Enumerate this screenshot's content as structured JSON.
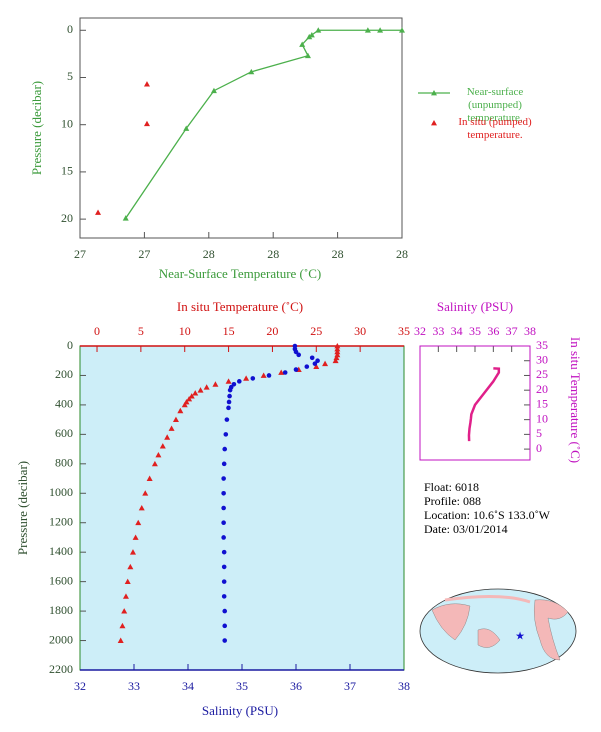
{
  "chart_data": [
    {
      "type": "line",
      "xlabel": "Near-Surface Temperature (˚C)",
      "ylabel": "Pressure (decibar)",
      "xlim": [
        27.3,
        27.8
      ],
      "xticks": [
        {
          "value": 27.3,
          "label": "27"
        },
        {
          "value": 27.4,
          "label": "27"
        },
        {
          "value": 27.5,
          "label": "28"
        },
        {
          "value": 27.6,
          "label": "28"
        },
        {
          "value": 27.7,
          "label": "28"
        },
        {
          "value": 27.8,
          "label": "28"
        }
      ],
      "ylim": [
        -1.3,
        22
      ],
      "yticks": [
        0,
        5,
        10,
        15,
        20
      ],
      "y_inverted": true,
      "xaxis_position": "bottom",
      "yaxis_position": "left",
      "label_color": "#3a9a3a",
      "tick_color": "#2f4f2f",
      "legend": "right",
      "series": [
        {
          "name": "Near-surface (unpumped) temperature.",
          "color": "#4cb04c",
          "marker": "triangle",
          "line": true,
          "x": [
            27.371,
            27.465,
            27.508,
            27.566,
            27.654,
            27.645,
            27.656,
            27.66,
            27.67,
            27.747,
            27.766,
            27.8
          ],
          "y": [
            19.9,
            10.4,
            6.4,
            4.4,
            2.7,
            1.5,
            0.7,
            0.5,
            0,
            0,
            0,
            0
          ]
        },
        {
          "name": "In situ (pumped) temperature.",
          "color": "#e02020",
          "marker": "triangle",
          "line": false,
          "x": [
            27.328,
            27.404,
            27.404
          ],
          "y": [
            19.3,
            9.9,
            5.7
          ]
        }
      ]
    },
    {
      "type": "scatter",
      "xlabel": "Salinity (PSU)",
      "x2label": "In situ Temperature (˚C)",
      "ylabel": "Pressure (decibar)",
      "xlim": [
        32,
        38
      ],
      "xticks": [
        32,
        33,
        34,
        35,
        36,
        37,
        38
      ],
      "x2lim": [
        -1.94,
        35
      ],
      "x2ticks": [
        0,
        5,
        10,
        15,
        20,
        25,
        30,
        35
      ],
      "ylim": [
        0,
        2200
      ],
      "yticks": [
        0,
        200,
        400,
        600,
        800,
        1000,
        1200,
        1400,
        1600,
        1800,
        2000,
        2200
      ],
      "y_inverted": true,
      "xaxis_position": "bottom",
      "x2axis_position": "top",
      "yaxis_position": "left",
      "x_color": "#1a1aa0",
      "x2_color": "#d01010",
      "tick_color": "#2f4f2f",
      "background": "#cdeef8",
      "series": [
        {
          "color": "#e02020",
          "marker": "triangle",
          "line": false,
          "axis": "x2",
          "x": [
            27.4,
            27.4,
            27.4,
            27.4,
            27.3,
            27.2,
            26,
            25,
            23,
            21,
            19,
            17,
            15,
            13.5,
            12.5,
            11.8,
            11.2,
            10.8,
            10.5,
            10.2,
            10,
            9.5,
            9,
            8.5,
            8,
            7.5,
            7,
            6.6,
            6,
            5.5,
            5.1,
            4.7,
            4.4,
            4.1,
            3.8,
            3.5,
            3.3,
            3.1,
            2.9,
            2.7
          ],
          "y": [
            0,
            20,
            40,
            60,
            80,
            100,
            120,
            140,
            160,
            180,
            200,
            220,
            240,
            260,
            280,
            300,
            320,
            340,
            360,
            380,
            400,
            440,
            500,
            560,
            620,
            680,
            740,
            800,
            900,
            1000,
            1100,
            1200,
            1300,
            1400,
            1500,
            1600,
            1700,
            1800,
            1900,
            2000
          ]
        },
        {
          "color": "#1010d0",
          "marker": "circle",
          "line": false,
          "x": [
            35.98,
            35.98,
            36.0,
            36.05,
            36.3,
            36.4,
            36.35,
            36.2,
            36.0,
            35.8,
            35.5,
            35.2,
            34.95,
            34.85,
            34.8,
            34.78,
            34.77,
            34.76,
            34.75,
            34.72,
            34.7,
            34.68,
            34.67,
            34.66,
            34.66,
            34.66,
            34.66,
            34.66,
            34.67,
            34.67,
            34.67,
            34.67,
            34.68,
            34.68,
            34.68
          ],
          "y": [
            0,
            20,
            40,
            60,
            80,
            100,
            120,
            140,
            160,
            180,
            200,
            220,
            240,
            260,
            280,
            300,
            340,
            380,
            420,
            500,
            600,
            700,
            800,
            900,
            1000,
            1100,
            1200,
            1300,
            1400,
            1500,
            1600,
            1700,
            1800,
            1900,
            2000
          ]
        }
      ]
    },
    {
      "type": "line",
      "xlabel": "Salinity (PSU)",
      "ylabel": "In situ Temperature (˚C)",
      "xlim": [
        32,
        38
      ],
      "xticks": [
        32,
        33,
        34,
        35,
        36,
        37,
        38
      ],
      "ylim": [
        -3.7,
        35
      ],
      "yticks": [
        0,
        5,
        10,
        15,
        20,
        25,
        30,
        35
      ],
      "y_inverted": false,
      "xaxis_position": "top",
      "yaxis_position": "right",
      "label_color": "#c010c0",
      "tick_color": "#c010c0",
      "series": [
        {
          "color": "#e0208a",
          "marker": "none",
          "line": true,
          "x": [
            34.68,
            34.67,
            34.7,
            34.75,
            34.78,
            34.8,
            35.0,
            35.5,
            36.0,
            36.3,
            36.3,
            36.0
          ],
          "y": [
            2.7,
            4.7,
            7,
            9,
            10.5,
            11.8,
            15,
            19,
            23,
            26,
            27.3,
            27.4
          ]
        }
      ]
    }
  ],
  "info": {
    "lines": [
      "Float:  6018",
      "Profile:  088",
      "Location:  10.6˚S  133.0˚W",
      "Date:  03/01/2014"
    ]
  }
}
